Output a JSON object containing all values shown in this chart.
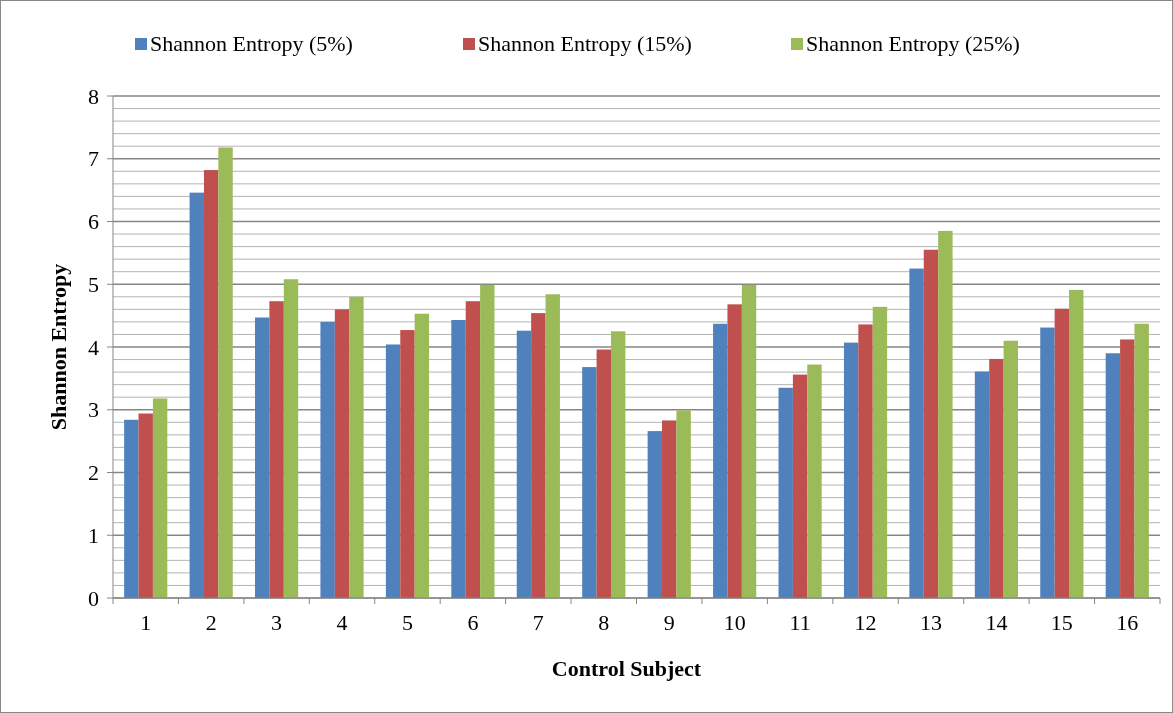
{
  "chart_data": {
    "type": "bar",
    "xlabel": "Control Subject",
    "ylabel": "Shannon Entropy",
    "categories": [
      "1",
      "2",
      "3",
      "4",
      "5",
      "6",
      "7",
      "8",
      "9",
      "10",
      "11",
      "12",
      "13",
      "14",
      "15",
      "16"
    ],
    "series": [
      {
        "name": "Shannon Entropy (5%)",
        "color": "#4f81bd",
        "values": [
          2.84,
          6.46,
          4.47,
          4.4,
          4.04,
          4.43,
          4.26,
          3.68,
          2.66,
          4.37,
          3.35,
          4.07,
          5.25,
          3.61,
          4.31,
          3.9
        ]
      },
      {
        "name": "Shannon Entropy (15%)",
        "color": "#c0504d",
        "values": [
          2.94,
          6.82,
          4.73,
          4.6,
          4.27,
          4.73,
          4.54,
          3.96,
          2.83,
          4.68,
          3.56,
          4.36,
          5.55,
          3.81,
          4.61,
          4.12
        ]
      },
      {
        "name": "Shannon Entropy (25%)",
        "color": "#9bbb59",
        "values": [
          3.18,
          7.18,
          5.08,
          4.8,
          4.53,
          4.99,
          4.84,
          4.25,
          2.99,
          4.99,
          3.72,
          4.64,
          5.85,
          4.1,
          4.91,
          4.37
        ]
      }
    ],
    "ylim": [
      0,
      8
    ],
    "yticks": [
      0,
      1,
      2,
      3,
      4,
      5,
      6,
      7,
      8
    ],
    "grid": "y",
    "legend": "top"
  }
}
